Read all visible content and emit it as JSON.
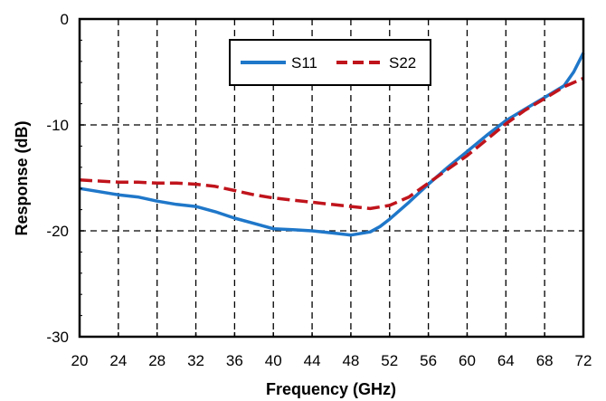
{
  "chart_data": {
    "type": "line",
    "xlabel": "Frequency (GHz)",
    "ylabel": "Response (dB)",
    "xlim": [
      20,
      72
    ],
    "ylim": [
      -30,
      0
    ],
    "x_ticks": [
      20,
      24,
      28,
      32,
      36,
      40,
      44,
      48,
      52,
      56,
      60,
      64,
      68,
      72
    ],
    "y_ticks": [
      0,
      -10,
      -20,
      -30
    ],
    "grid": true,
    "legend_position": "top-center",
    "series": [
      {
        "name": "S11",
        "color": "#1f77c9",
        "dash": "solid",
        "points": [
          [
            20,
            -16.0
          ],
          [
            22,
            -16.3
          ],
          [
            24,
            -16.6
          ],
          [
            26,
            -16.8
          ],
          [
            28,
            -17.2
          ],
          [
            30,
            -17.5
          ],
          [
            32,
            -17.7
          ],
          [
            34,
            -18.2
          ],
          [
            36,
            -18.8
          ],
          [
            38,
            -19.3
          ],
          [
            40,
            -19.8
          ],
          [
            42,
            -19.9
          ],
          [
            44,
            -20.0
          ],
          [
            46,
            -20.2
          ],
          [
            48,
            -20.4
          ],
          [
            50,
            -20.1
          ],
          [
            51,
            -19.6
          ],
          [
            52,
            -18.9
          ],
          [
            54,
            -17.3
          ],
          [
            56,
            -15.6
          ],
          [
            58,
            -14.0
          ],
          [
            60,
            -12.5
          ],
          [
            62,
            -11.0
          ],
          [
            64,
            -9.6
          ],
          [
            66,
            -8.5
          ],
          [
            68,
            -7.4
          ],
          [
            70,
            -6.3
          ],
          [
            71,
            -5.0
          ],
          [
            72,
            -3.2
          ]
        ]
      },
      {
        "name": "S22",
        "color": "#c0141c",
        "dash": "dashed",
        "points": [
          [
            20,
            -15.2
          ],
          [
            22,
            -15.3
          ],
          [
            24,
            -15.4
          ],
          [
            26,
            -15.4
          ],
          [
            28,
            -15.5
          ],
          [
            30,
            -15.5
          ],
          [
            32,
            -15.6
          ],
          [
            34,
            -15.8
          ],
          [
            36,
            -16.2
          ],
          [
            38,
            -16.6
          ],
          [
            40,
            -16.9
          ],
          [
            42,
            -17.1
          ],
          [
            44,
            -17.3
          ],
          [
            46,
            -17.5
          ],
          [
            48,
            -17.7
          ],
          [
            50,
            -17.9
          ],
          [
            52,
            -17.6
          ],
          [
            54,
            -16.8
          ],
          [
            56,
            -15.5
          ],
          [
            58,
            -14.2
          ],
          [
            60,
            -12.9
          ],
          [
            62,
            -11.4
          ],
          [
            64,
            -9.9
          ],
          [
            66,
            -8.6
          ],
          [
            68,
            -7.5
          ],
          [
            70,
            -6.4
          ],
          [
            72,
            -5.6
          ]
        ]
      }
    ]
  }
}
